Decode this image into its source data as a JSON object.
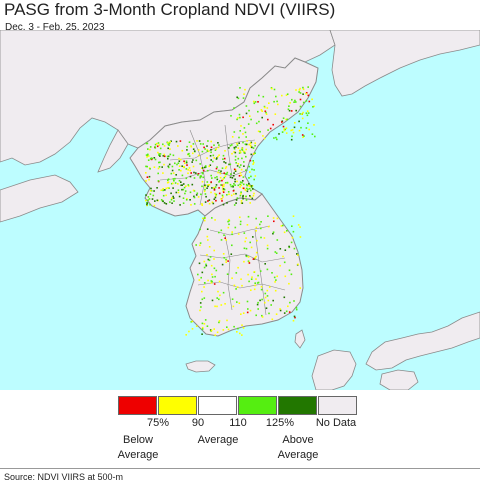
{
  "header": {
    "title": "PASG from 3-Month Cropland NDVI (VIIRS)",
    "subtitle": "Dec. 3 - Feb. 25, 2023"
  },
  "map": {
    "sea_color": "#bdfdff",
    "land_color": "#f0ecf0",
    "border_color": "#8a8a8a"
  },
  "legend": {
    "swatches": [
      {
        "color": "#ee0000"
      },
      {
        "color": "#ffff00"
      },
      {
        "color": "#ffffff"
      },
      {
        "color": "#55ee11"
      },
      {
        "color": "#227700"
      },
      {
        "color": "#f0ecf0"
      }
    ],
    "ticks": [
      "75%",
      "90",
      "110",
      "125%",
      "No Data"
    ],
    "categories": {
      "below": [
        "Below",
        "Average"
      ],
      "average": "Average",
      "above": [
        "Above",
        "Average"
      ]
    }
  },
  "footer": {
    "source": "Source: NDVI VIIRS at 500-m"
  }
}
